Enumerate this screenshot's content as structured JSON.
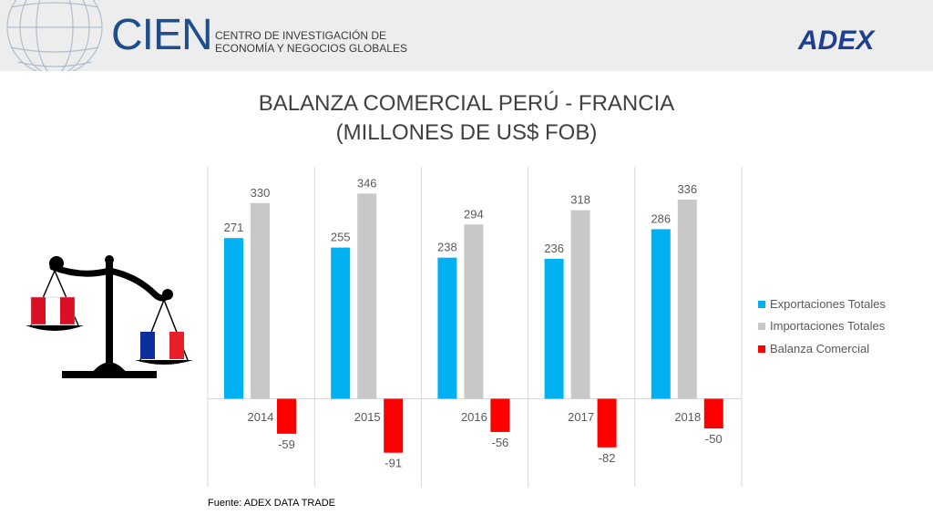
{
  "header": {
    "org_name": "CIEN",
    "org_line1": "CENTRO DE INVESTIGACIÓN DE",
    "org_line2": "ECONOMÍA Y NEGOCIOS GLOBALES",
    "partner_name": "ADEX"
  },
  "source_note": "Fuente: ADEX DATA TRADE",
  "colors": {
    "exports": "#00b0f0",
    "imports": "#c8c8c8",
    "balance": "#ff0000",
    "text": "#595959"
  },
  "chart_data": {
    "type": "bar",
    "title_line1": "BALANZA COMERCIAL PERÚ - FRANCIA",
    "title_line2": "(MILLONES DE US$ FOB)",
    "categories": [
      "2014",
      "2015",
      "2016",
      "2017",
      "2018"
    ],
    "series": [
      {
        "name": "Exportaciones Totales",
        "values": [
          271,
          255,
          238,
          236,
          286
        ]
      },
      {
        "name": "Importaciones Totales",
        "values": [
          330,
          346,
          294,
          318,
          336
        ]
      },
      {
        "name": "Balanza Comercial",
        "values": [
          -59,
          -91,
          -56,
          -82,
          -50
        ]
      }
    ],
    "ylim": [
      -100,
      400
    ],
    "legend_position": "right",
    "grid": false
  }
}
